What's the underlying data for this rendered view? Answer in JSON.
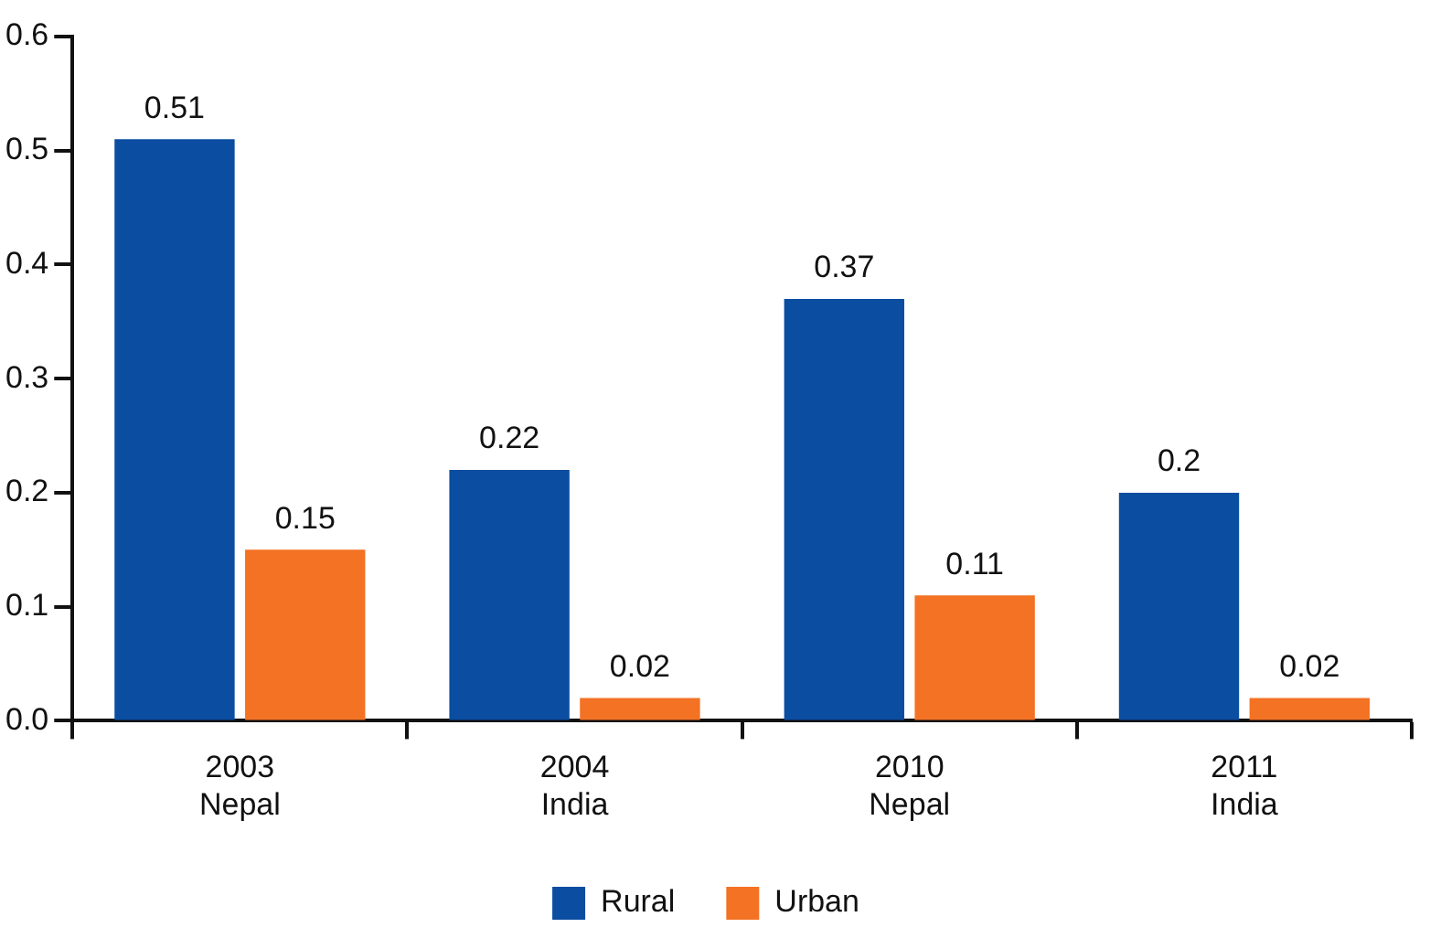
{
  "chart_data": {
    "type": "bar",
    "categories": [
      "2003\nNepal",
      "2004\nIndia",
      "2010\nNepal",
      "2011\nIndia"
    ],
    "series": [
      {
        "name": "Rural",
        "color": "#0a4da1",
        "values": [
          0.51,
          0.22,
          0.37,
          0.2
        ]
      },
      {
        "name": "Urban",
        "color": "#f37224",
        "values": [
          0.15,
          0.02,
          0.11,
          0.02
        ]
      }
    ],
    "ylim": [
      0,
      0.6
    ],
    "yticks": [
      {
        "value": 0,
        "label": "0.0"
      },
      0.1,
      0.2,
      0.3,
      0.4,
      0.5,
      0.6
    ],
    "grid": false,
    "legend": "bottom",
    "data_labels": true
  }
}
